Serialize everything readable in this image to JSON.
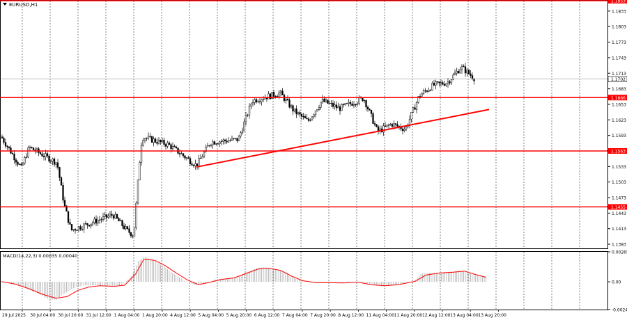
{
  "window": {
    "title": "EURUSD,H1",
    "menu_icon": "triangle-down-icon"
  },
  "colors": {
    "level_line": "#ff0000",
    "trend_line": "#ff0000",
    "price_tag_bg": "#ff0000",
    "candle": "#000000",
    "macd_hist": "#a0a0a0",
    "macd_signal": "#ff0000",
    "grid": "#606060"
  },
  "chart_data": [
    {
      "type": "candlestick",
      "title": "EURUSD,H1",
      "ylim": [
        1.1375,
        1.1853
      ],
      "y_ticks": [
        "1.1833",
        "1.1803",
        "1.1773",
        "1.1743",
        "1.1713",
        "1.1683",
        "1.1653",
        "1.1623",
        "1.1593",
        "1.1563",
        "1.1533",
        "1.1503",
        "1.1473",
        "1.1443",
        "1.1413",
        "1.1383"
      ],
      "current_price": "1.1702",
      "levels": [
        {
          "label": "1.1853",
          "value": 1.1853
        },
        {
          "label": "1.1666",
          "value": 1.1666
        },
        {
          "label": "1.1563",
          "value": 1.1563
        },
        {
          "label": "1.1455",
          "value": 1.1455
        }
      ],
      "trendline": {
        "from": {
          "x": "5 Aug 04:00",
          "y": 1.1532
        },
        "to": {
          "x": "14 Aug 04:00",
          "y": 1.1643
        }
      },
      "path": [
        [
          "29 Jul 2025",
          1.159
        ],
        [
          "29 Jul 20:00",
          1.153
        ],
        [
          "30 Jul 04:00",
          1.157
        ],
        [
          "30 Jul 20:00",
          1.154
        ],
        [
          "31 Jul 00:00",
          1.146
        ],
        [
          "31 Jul 04:00",
          1.141
        ],
        [
          "31 Jul 20:00",
          1.143
        ],
        [
          "1 Aug 04:00",
          1.144
        ],
        [
          "1 Aug 12:00",
          1.141
        ],
        [
          "1 Aug 16:00",
          1.14
        ],
        [
          "1 Aug 20:00",
          1.157
        ],
        [
          "2 Aug 00:00",
          1.159
        ],
        [
          "4 Aug 12:00",
          1.1575
        ],
        [
          "5 Aug 04:00",
          1.1535
        ],
        [
          "5 Aug 12:00",
          1.158
        ],
        [
          "6 Aug 04:00",
          1.1585
        ],
        [
          "6 Aug 12:00",
          1.166
        ],
        [
          "7 Aug 04:00",
          1.1675
        ],
        [
          "7 Aug 12:00",
          1.164
        ],
        [
          "7 Aug 20:00",
          1.162
        ],
        [
          "8 Aug 04:00",
          1.166
        ],
        [
          "8 Aug 20:00",
          1.1645
        ],
        [
          "11 Aug 04:00",
          1.1665
        ],
        [
          "11 Aug 12:00",
          1.16
        ],
        [
          "11 Aug 20:00",
          1.1615
        ],
        [
          "12 Aug 04:00",
          1.1605
        ],
        [
          "12 Aug 12:00",
          1.167
        ],
        [
          "12 Aug 20:00",
          1.169
        ],
        [
          "13 Aug 04:00",
          1.1695
        ],
        [
          "13 Aug 12:00",
          1.1725
        ],
        [
          "13 Aug 20:00",
          1.1702
        ]
      ]
    },
    {
      "type": "bar",
      "title": "MACD(14,22,3) 0.00035 0.00040",
      "ylim": [
        -0.00245,
        0.00265
      ],
      "y_ticks": [
        "0.00265",
        "0.00",
        "-0.00245"
      ],
      "series": [
        {
          "name": "MACD",
          "values": [
            [
              0,
              2e-05
            ],
            [
              8,
              -0.0002
            ],
            [
              16,
              -0.00045
            ],
            [
              22,
              -0.0008
            ],
            [
              28,
              -0.0011
            ],
            [
              34,
              -0.0015
            ],
            [
              40,
              -0.0016
            ],
            [
              44,
              -0.0012
            ],
            [
              52,
              -0.0006
            ],
            [
              60,
              -0.0003
            ],
            [
              70,
              -0.0003
            ],
            [
              80,
              -0.0004
            ],
            [
              88,
              -0.0003
            ],
            [
              95,
              0.0005
            ],
            [
              100,
              0.0018
            ],
            [
              104,
              0.0022
            ],
            [
              110,
              0.002
            ],
            [
              118,
              0.0014
            ],
            [
              126,
              0.0007
            ],
            [
              134,
              0.0001
            ],
            [
              142,
              -0.0003
            ],
            [
              148,
              -0.0002
            ],
            [
              156,
              0.0002
            ],
            [
              164,
              0.0003
            ],
            [
              172,
              0.0004
            ],
            [
              180,
              0.0009
            ],
            [
              186,
              0.0012
            ],
            [
              192,
              0.0013
            ],
            [
              200,
              0.0011
            ],
            [
              208,
              0.0008
            ],
            [
              214,
              0.0003
            ],
            [
              222,
              5e-05
            ],
            [
              230,
              -0.0001
            ],
            [
              238,
              -5e-05
            ],
            [
              246,
              -0.00015
            ],
            [
              254,
              -5e-05
            ],
            [
              262,
              0.0
            ],
            [
              270,
              -0.0003
            ],
            [
              278,
              -0.0004
            ],
            [
              286,
              -0.0003
            ],
            [
              294,
              -0.0002
            ],
            [
              302,
              0.0001
            ],
            [
              306,
              0.0007
            ],
            [
              314,
              0.0008
            ],
            [
              322,
              0.0008
            ],
            [
              328,
              0.0009
            ],
            [
              336,
              0.001
            ],
            [
              344,
              0.0007
            ],
            [
              350,
              0.0005
            ],
            [
              354,
              0.00035
            ]
          ]
        },
        {
          "name": "Signal",
          "type": "line",
          "values": [
            [
              0,
              2e-05
            ],
            [
              10,
              -0.0002
            ],
            [
              20,
              -0.0006
            ],
            [
              30,
              -0.0011
            ],
            [
              40,
              -0.00145
            ],
            [
              48,
              -0.0013
            ],
            [
              56,
              -0.00075
            ],
            [
              64,
              -0.00045
            ],
            [
              72,
              -0.00035
            ],
            [
              82,
              -0.0004
            ],
            [
              90,
              -0.0003
            ],
            [
              98,
              0.0007
            ],
            [
              104,
              0.002
            ],
            [
              112,
              0.0019
            ],
            [
              120,
              0.0014
            ],
            [
              128,
              0.00075
            ],
            [
              136,
              0.00015
            ],
            [
              144,
              -0.00025
            ],
            [
              152,
              -5e-05
            ],
            [
              160,
              0.0002
            ],
            [
              170,
              0.00035
            ],
            [
              180,
              0.0008
            ],
            [
              188,
              0.00115
            ],
            [
              196,
              0.0012
            ],
            [
              204,
              0.001
            ],
            [
              212,
              0.0005
            ],
            [
              220,
              0.0001
            ],
            [
              230,
              -8e-05
            ],
            [
              240,
              -8e-05
            ],
            [
              250,
              -0.0001
            ],
            [
              260,
              -2e-05
            ],
            [
              270,
              -0.00025
            ],
            [
              280,
              -0.00035
            ],
            [
              290,
              -0.00025
            ],
            [
              302,
              5e-05
            ],
            [
              310,
              0.0006
            ],
            [
              320,
              0.00078
            ],
            [
              330,
              0.00085
            ],
            [
              338,
              0.00095
            ],
            [
              346,
              0.00065
            ],
            [
              354,
              0.0004
            ]
          ]
        }
      ]
    }
  ],
  "x_axis": {
    "labels": [
      "29 Jul 2025",
      "30 Jul 04:00",
      "30 Jul 20:00",
      "31 Jul 12:00",
      "1 Aug 04:00",
      "1 Aug 20:00",
      "4 Aug 12:00",
      "5 Aug 04:00",
      "5 Aug 20:00",
      "6 Aug 12:00",
      "7 Aug 04:00",
      "7 Aug 20:00",
      "8 Aug 12:00",
      "11 Aug 04:00",
      "11 Aug 20:00",
      "12 Aug 12:00",
      "13 Aug 04:00",
      "13 Aug 20:00"
    ]
  }
}
